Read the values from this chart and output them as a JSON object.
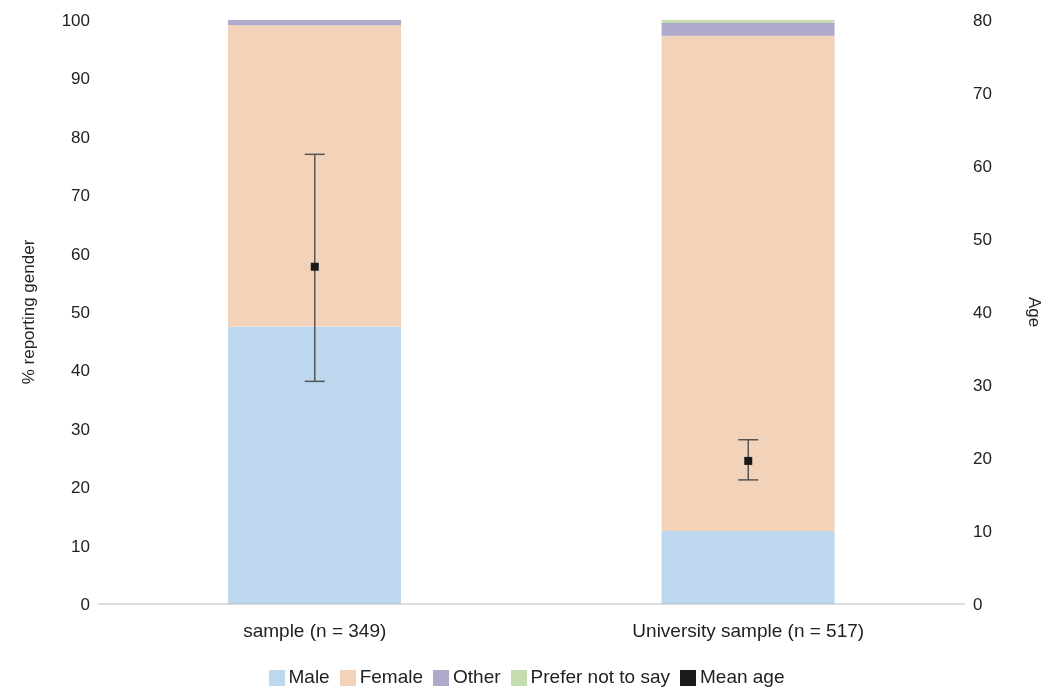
{
  "chart_data": {
    "type": "bar",
    "stacked": true,
    "categories": [
      "sample (n = 349)",
      "University sample (n = 517)"
    ],
    "ylabel": "% reporting gender",
    "y2label": "Age",
    "ylim": [
      0,
      100
    ],
    "yticks": [
      0,
      10,
      20,
      30,
      40,
      50,
      60,
      70,
      80,
      90,
      100
    ],
    "y2lim": [
      0,
      80
    ],
    "y2ticks": [
      0,
      10,
      20,
      30,
      40,
      50,
      60,
      70,
      80
    ],
    "series": [
      {
        "name": "Male",
        "color": "#bdd7ee",
        "values": [
          47.5,
          12.5
        ]
      },
      {
        "name": "Female",
        "color": "#f2d3b9",
        "values": [
          51.6,
          84.8
        ]
      },
      {
        "name": "Other",
        "color": "#aeaacc",
        "values": [
          0.9,
          2.2
        ]
      },
      {
        "name": "Prefer not to say",
        "color": "#c5dbb0",
        "values": [
          0,
          0.5
        ]
      },
      {
        "name": "Mean age",
        "type": "scatter",
        "axis": "y2",
        "marker": "square",
        "color": "#1a1a1a",
        "values": [
          46.2,
          19.6
        ],
        "errors": [
          [
            30.5,
            61.6
          ],
          [
            17,
            22.5
          ]
        ]
      }
    ],
    "legend": "bottom"
  }
}
